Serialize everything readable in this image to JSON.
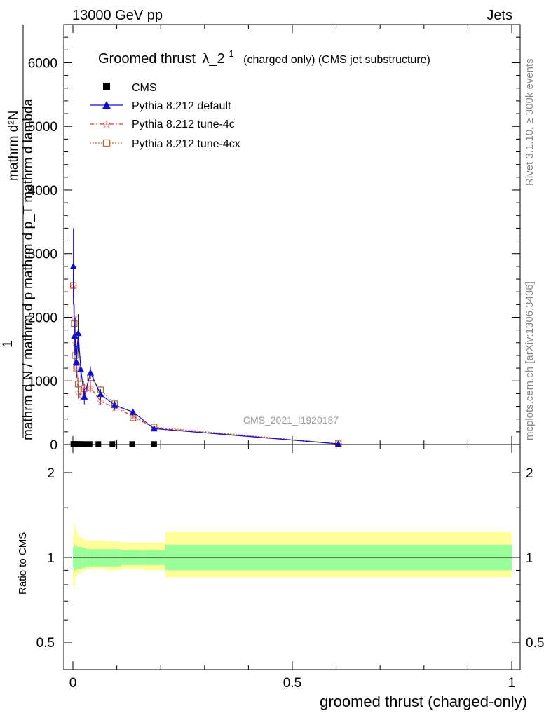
{
  "header": {
    "left": "13000 GeV pp",
    "right": "Jets"
  },
  "side_labels": {
    "rivet": "Rivet 3.1.10, ≥ 300k events",
    "mcplots": "mcplots.cern.ch [arXiv:1306.3436]"
  },
  "watermark": "CMS_2021_I1920187",
  "chart_data": [
    {
      "type": "line",
      "title": "Groomed thrust",
      "title_symbol": "λ_2",
      "title_superscript": "1",
      "subtitle": "(charged only) (CMS jet substructure)",
      "ylabel_numerator": "mathrm d²N",
      "ylabel_numerator_extra": "mathrm d p_T mathrm d lambda",
      "ylabel_denominator": "mathrm d N / mathrm d p",
      "ylabel_one": "1",
      "ylim": [
        0,
        6600
      ],
      "xlim": [
        -0.02,
        1.0
      ],
      "yticks": [
        0,
        1000,
        2000,
        3000,
        4000,
        5000,
        6000
      ],
      "ytick_labels": [
        "0",
        "1000",
        "2000",
        "3000",
        "4000",
        "5000",
        "6000"
      ],
      "legend_position": "top-left",
      "series": [
        {
          "name": "CMS",
          "color": "#000000",
          "marker": "square",
          "x": [
            0.001,
            0.003,
            0.005,
            0.008,
            0.012,
            0.018,
            0.026,
            0.038,
            0.058,
            0.09,
            0.135,
            0.185
          ],
          "values": [
            8,
            8,
            8,
            8,
            8,
            8,
            8,
            8,
            8,
            8,
            8,
            8
          ]
        },
        {
          "name": "Pythia 8.212 default",
          "color": "#1010cc",
          "marker": "triangle",
          "x": [
            0.001,
            0.003,
            0.005,
            0.008,
            0.012,
            0.018,
            0.026,
            0.04,
            0.063,
            0.095,
            0.137,
            0.185,
            0.605
          ],
          "values": [
            2800,
            1700,
            1700,
            1300,
            1750,
            1180,
            750,
            1130,
            790,
            620,
            510,
            250,
            10
          ],
          "errors": [
            600,
            500,
            300,
            250,
            300,
            200,
            120,
            100,
            80,
            60,
            50,
            30,
            5
          ]
        },
        {
          "name": "Pythia 8.212 tune-4c",
          "color": "#dd3333",
          "marker": "star",
          "x": [
            0.001,
            0.003,
            0.005,
            0.008,
            0.012,
            0.018,
            0.026,
            0.04,
            0.063,
            0.095,
            0.137,
            0.185,
            0.605
          ],
          "values": [
            2500,
            2000,
            1600,
            1230,
            820,
            780,
            870,
            900,
            680,
            580,
            450,
            260,
            10
          ],
          "errors": [
            200,
            200,
            200,
            150,
            100,
            90,
            80,
            80,
            60,
            50,
            40,
            25,
            5
          ]
        },
        {
          "name": "Pythia 8.212 tune-4cx",
          "color": "#c86428",
          "marker": "open-square",
          "x": [
            0.001,
            0.003,
            0.005,
            0.008,
            0.012,
            0.018,
            0.026,
            0.04,
            0.063,
            0.095,
            0.137,
            0.185,
            0.605
          ],
          "values": [
            2500,
            1900,
            1400,
            1200,
            950,
            950,
            880,
            1050,
            860,
            640,
            420,
            275,
            12
          ],
          "errors": [
            200,
            200,
            150,
            120,
            100,
            90,
            80,
            80,
            60,
            50,
            40,
            25,
            5
          ]
        }
      ]
    },
    {
      "type": "area",
      "ylabel": "Ratio to CMS",
      "xlabel": "groomed thrust (charged-only)",
      "xlim": [
        -0.02,
        1.0
      ],
      "ylim": [
        0.4,
        2.3
      ],
      "log_y": true,
      "xticks": [
        0,
        0.5,
        1
      ],
      "xtick_labels": [
        "0",
        "0.5",
        "1"
      ],
      "yticks": [
        0.5,
        1,
        2
      ],
      "ytick_labels": [
        "0.5",
        "1",
        "2"
      ],
      "bands": {
        "edges": [
          0.0,
          0.002,
          0.004,
          0.006,
          0.01,
          0.014,
          0.022,
          0.03,
          0.05,
          0.075,
          0.11,
          0.16,
          0.21,
          1.0
        ],
        "inner_low": [
          0.92,
          0.88,
          0.9,
          0.9,
          0.91,
          0.91,
          0.92,
          0.93,
          0.93,
          0.93,
          0.94,
          0.94,
          0.9
        ],
        "inner_high": [
          1.08,
          1.12,
          1.1,
          1.1,
          1.09,
          1.09,
          1.08,
          1.07,
          1.07,
          1.07,
          1.06,
          1.06,
          1.11
        ],
        "outer_low": [
          0.8,
          0.77,
          0.84,
          0.86,
          0.87,
          0.88,
          0.9,
          0.91,
          0.91,
          0.9,
          0.91,
          0.9,
          0.85
        ],
        "outer_high": [
          1.2,
          1.35,
          1.28,
          1.25,
          1.2,
          1.18,
          1.16,
          1.15,
          1.15,
          1.14,
          1.13,
          1.13,
          1.23
        ],
        "inner_color": "#99ff99",
        "outer_color": "#ffff99"
      }
    }
  ]
}
